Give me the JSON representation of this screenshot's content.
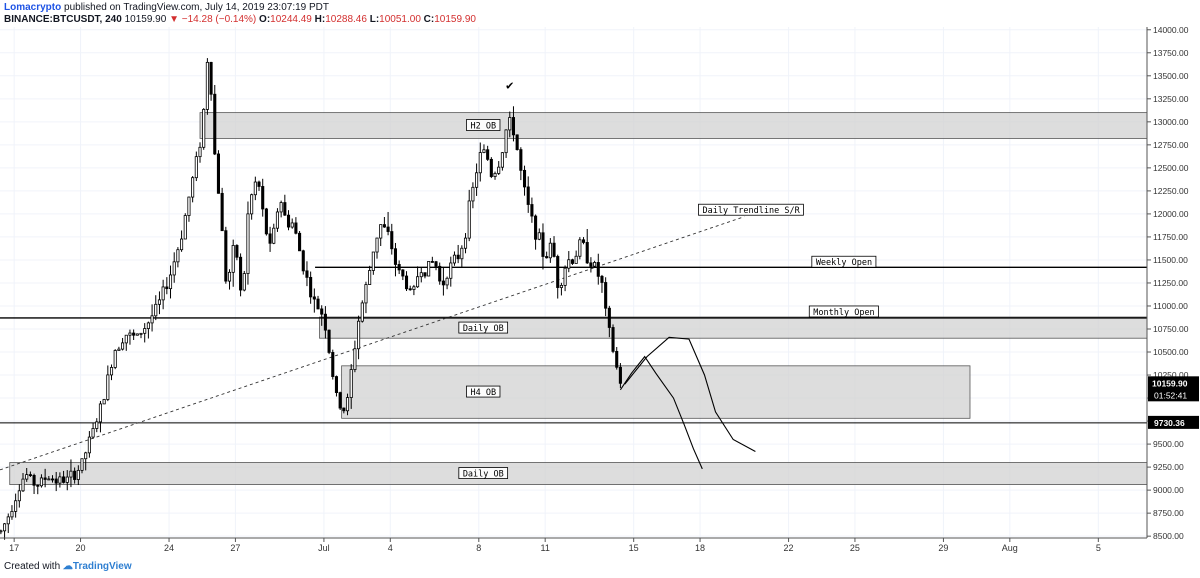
{
  "header": {
    "author": "Lomacrypto",
    "published": "published on TradingView.com, July 14, 2019 23:07:19 PDT",
    "symbol": "BINANCE:BTCUSDT, 240",
    "last": "10159.90",
    "change": "−14.28 (−0.14%)",
    "o_label": "O:",
    "o": "10244.49",
    "h_label": "H:",
    "h": "10288.46",
    "l_label": "L:",
    "l": "10051.00",
    "c_label": "C:",
    "c": "10159.90"
  },
  "footer": {
    "created": "Created with",
    "brand": "TradingView"
  },
  "chart_data": {
    "type": "candlestick",
    "y_ticks": [
      8500,
      8750,
      9000,
      9250,
      9500,
      9750,
      10000,
      10250,
      10500,
      10750,
      11000,
      11250,
      11500,
      11750,
      12000,
      12250,
      12500,
      12750,
      13000,
      13250,
      13500,
      13750,
      14000
    ],
    "y_tick_labels": [
      "8500.00",
      "8750.00",
      "9000.00",
      "9250.00",
      "9500.00",
      "9750.00",
      "10000.00",
      "10250.00",
      "10500.00",
      "10750.00",
      "11000.00",
      "11250.00",
      "11500.00",
      "11750.00",
      "12000.00",
      "12250.00",
      "12500.00",
      "12750.00",
      "13000.00",
      "13250.00",
      "13500.00",
      "13750.00",
      "14000.00"
    ],
    "ylim": [
      8480,
      14030
    ],
    "x_ticks": [
      {
        "label": "17",
        "day": 0
      },
      {
        "label": "20",
        "day": 3
      },
      {
        "label": "24",
        "day": 7
      },
      {
        "label": "27",
        "day": 10
      },
      {
        "label": "Jul",
        "day": 14
      },
      {
        "label": "4",
        "day": 17
      },
      {
        "label": "8",
        "day": 21
      },
      {
        "label": "11",
        "day": 24
      },
      {
        "label": "15",
        "day": 28
      },
      {
        "label": "18",
        "day": 31
      },
      {
        "label": "22",
        "day": 35
      },
      {
        "label": "25",
        "day": 38
      },
      {
        "label": "29",
        "day": 42
      },
      {
        "label": "Aug",
        "day": 45
      },
      {
        "label": "5",
        "day": 49
      }
    ],
    "x_range_days": [
      -0.64,
      51.2
    ],
    "price_points": [
      [
        -0.6,
        8550
      ],
      [
        -0.3,
        8700
      ],
      [
        0,
        8900
      ],
      [
        0.5,
        9180
      ],
      [
        1,
        9050
      ],
      [
        1.5,
        9150
      ],
      [
        2,
        9100
      ],
      [
        2.5,
        9120
      ],
      [
        3,
        9250
      ],
      [
        3.5,
        9600
      ],
      [
        4,
        9950
      ],
      [
        4.5,
        10500
      ],
      [
        5,
        10700
      ],
      [
        5.5,
        10650
      ],
      [
        6,
        10800
      ],
      [
        6.5,
        11000
      ],
      [
        7,
        11300
      ],
      [
        7.5,
        11700
      ],
      [
        8,
        12300
      ],
      [
        8.5,
        12900
      ],
      [
        8.8,
        13900
      ],
      [
        9.0,
        12800
      ],
      [
        9.3,
        12100
      ],
      [
        9.6,
        11200
      ],
      [
        10,
        11700
      ],
      [
        10.3,
        11000
      ],
      [
        10.6,
        12100
      ],
      [
        11,
        12400
      ],
      [
        11.3,
        11900
      ],
      [
        11.6,
        11600
      ],
      [
        12,
        12200
      ],
      [
        12.3,
        11900
      ],
      [
        12.6,
        11900
      ],
      [
        13,
        11500
      ],
      [
        13.5,
        11050
      ],
      [
        14,
        10900
      ],
      [
        14.3,
        10400
      ],
      [
        14.6,
        9950
      ],
      [
        15,
        9850
      ],
      [
        15.3,
        10400
      ],
      [
        15.6,
        10900
      ],
      [
        16,
        11300
      ],
      [
        16.3,
        11700
      ],
      [
        16.6,
        11900
      ],
      [
        17,
        11700
      ],
      [
        17.3,
        11400
      ],
      [
        17.6,
        11300
      ],
      [
        18,
        11100
      ],
      [
        18.3,
        11400
      ],
      [
        18.6,
        11400
      ],
      [
        19,
        11500
      ],
      [
        19.3,
        11200
      ],
      [
        19.6,
        11400
      ],
      [
        20,
        11500
      ],
      [
        20.3,
        11700
      ],
      [
        20.6,
        12100
      ],
      [
        21,
        12600
      ],
      [
        21.3,
        12700
      ],
      [
        21.6,
        12400
      ],
      [
        22,
        12600
      ],
      [
        22.3,
        13000
      ],
      [
        22.6,
        12900
      ],
      [
        23,
        12300
      ],
      [
        23.3,
        12000
      ],
      [
        23.6,
        11800
      ],
      [
        24,
        11500
      ],
      [
        24.3,
        11700
      ],
      [
        24.6,
        11200
      ],
      [
        25,
        11500
      ],
      [
        25.3,
        11500
      ],
      [
        25.6,
        11700
      ],
      [
        26,
        11500
      ],
      [
        26.3,
        11400
      ],
      [
        26.6,
        11200
      ],
      [
        26.8,
        10800
      ],
      [
        27,
        10600
      ],
      [
        27.2,
        10350
      ],
      [
        27.4,
        10180
      ],
      [
        27.55,
        10160
      ]
    ],
    "labels": {
      "h2_ob": "H2 OB",
      "daily_ob_mid": "Daily OB",
      "h4_ob": "H4 OB",
      "daily_ob_low": "Daily OB",
      "trendline": "Daily Trendline S/R",
      "weekly_open": "Weekly Open",
      "monthly_open": "Monthly Open",
      "checkmark": "✔"
    },
    "zones": [
      {
        "name": "h2-ob-zone",
        "from_day": 8.4,
        "to_day": 51.2,
        "low": 12820,
        "high": 13100
      },
      {
        "name": "daily-ob-zone-mid",
        "from_day": 13.8,
        "to_day": 51.2,
        "low": 10650,
        "high": 10880
      },
      {
        "name": "h4-ob-zone",
        "from_day": 14.8,
        "to_day": 43.2,
        "low": 9780,
        "high": 10350
      },
      {
        "name": "daily-ob-zone-low",
        "from_day": -0.2,
        "to_day": 51.2,
        "low": 9060,
        "high": 9300
      }
    ],
    "levels": {
      "weekly_open": {
        "value": 11420,
        "from_day": 13.6
      },
      "monthly_open": {
        "value": 10870,
        "from_day": -0.64
      },
      "support": {
        "value": 9730.36,
        "from_day": -0.64
      }
    },
    "trendline": {
      "from": [
        -0.64,
        9220
      ],
      "to": [
        33,
        11970
      ]
    },
    "projection": [
      [
        27.4,
        10090
      ],
      [
        27.9,
        10270
      ],
      [
        28.5,
        10450
      ],
      [
        29,
        10270
      ],
      [
        29.8,
        10000
      ],
      [
        30.3,
        9700
      ],
      [
        30.7,
        9450
      ],
      [
        31.1,
        9230
      ]
    ],
    "projection2": [
      [
        27.6,
        10150
      ],
      [
        28.6,
        10450
      ],
      [
        29.6,
        10660
      ],
      [
        30.5,
        10640
      ],
      [
        31.2,
        10250
      ],
      [
        31.7,
        9850
      ],
      [
        32.5,
        9550
      ],
      [
        33.5,
        9420
      ]
    ],
    "price_badge": {
      "value": "10159.90",
      "countdown": "01:52:41"
    },
    "support_badge": "9730.36",
    "colors": {
      "up": "#ffffff",
      "down": "#000000",
      "zone": "#d1d1d1",
      "zone_border": "#555555",
      "axis": "#555555"
    }
  }
}
